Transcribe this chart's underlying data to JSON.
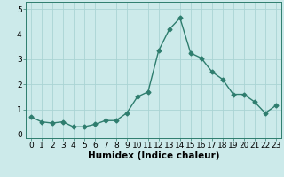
{
  "title": "",
  "xlabel": "Humidex (Indice chaleur)",
  "ylabel": "",
  "x_values": [
    0,
    1,
    2,
    3,
    4,
    5,
    6,
    7,
    8,
    9,
    10,
    11,
    12,
    13,
    14,
    15,
    16,
    17,
    18,
    19,
    20,
    21,
    22,
    23
  ],
  "y_values": [
    0.7,
    0.5,
    0.45,
    0.5,
    0.3,
    0.3,
    0.4,
    0.55,
    0.55,
    0.85,
    1.5,
    1.7,
    3.35,
    4.2,
    4.65,
    3.25,
    3.05,
    2.5,
    2.2,
    1.6,
    1.6,
    1.3,
    0.85,
    1.15
  ],
  "line_color": "#2e7d6e",
  "marker": "D",
  "marker_size": 2.5,
  "bg_color": "#cceaea",
  "grid_color": "#aad4d4",
  "ylim": [
    -0.15,
    5.3
  ],
  "xlim": [
    -0.5,
    23.5
  ],
  "yticks": [
    0,
    1,
    2,
    3,
    4,
    5
  ],
  "xticks": [
    0,
    1,
    2,
    3,
    4,
    5,
    6,
    7,
    8,
    9,
    10,
    11,
    12,
    13,
    14,
    15,
    16,
    17,
    18,
    19,
    20,
    21,
    22,
    23
  ],
  "xlabel_fontsize": 7.5,
  "tick_fontsize": 6.5,
  "line_width": 1.0
}
